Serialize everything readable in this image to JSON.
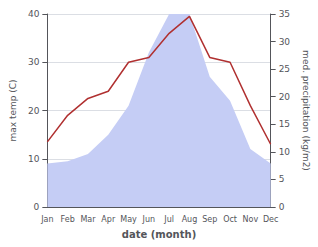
{
  "chart_data": {
    "type": "line",
    "categories": [
      "Jan",
      "Feb",
      "Mar",
      "Apr",
      "May",
      "Jun",
      "Jul",
      "Aug",
      "Sep",
      "Oct",
      "Nov",
      "Dec"
    ],
    "series": [
      {
        "type": "area",
        "color": "#c5cdf5",
        "values": [
          9,
          9.5,
          11,
          15,
          21,
          32,
          40,
          40,
          27,
          22,
          12,
          9
        ]
      },
      {
        "type": "line",
        "color": "#b03030",
        "values": [
          13.5,
          19,
          22.5,
          24,
          30,
          31,
          36,
          39.5,
          31,
          30,
          21,
          13
        ]
      }
    ],
    "xlabel": "date (month)",
    "ylabel": "max temp (C)",
    "y2label": "med. precipitation (kg/m2)",
    "ylim": [
      0,
      40
    ],
    "yticks": [
      0,
      10,
      20,
      30,
      40
    ],
    "y2lim": [
      0,
      35
    ],
    "y2ticks": [
      0,
      5,
      10,
      15,
      20,
      25,
      30,
      35
    ],
    "grid": true
  }
}
